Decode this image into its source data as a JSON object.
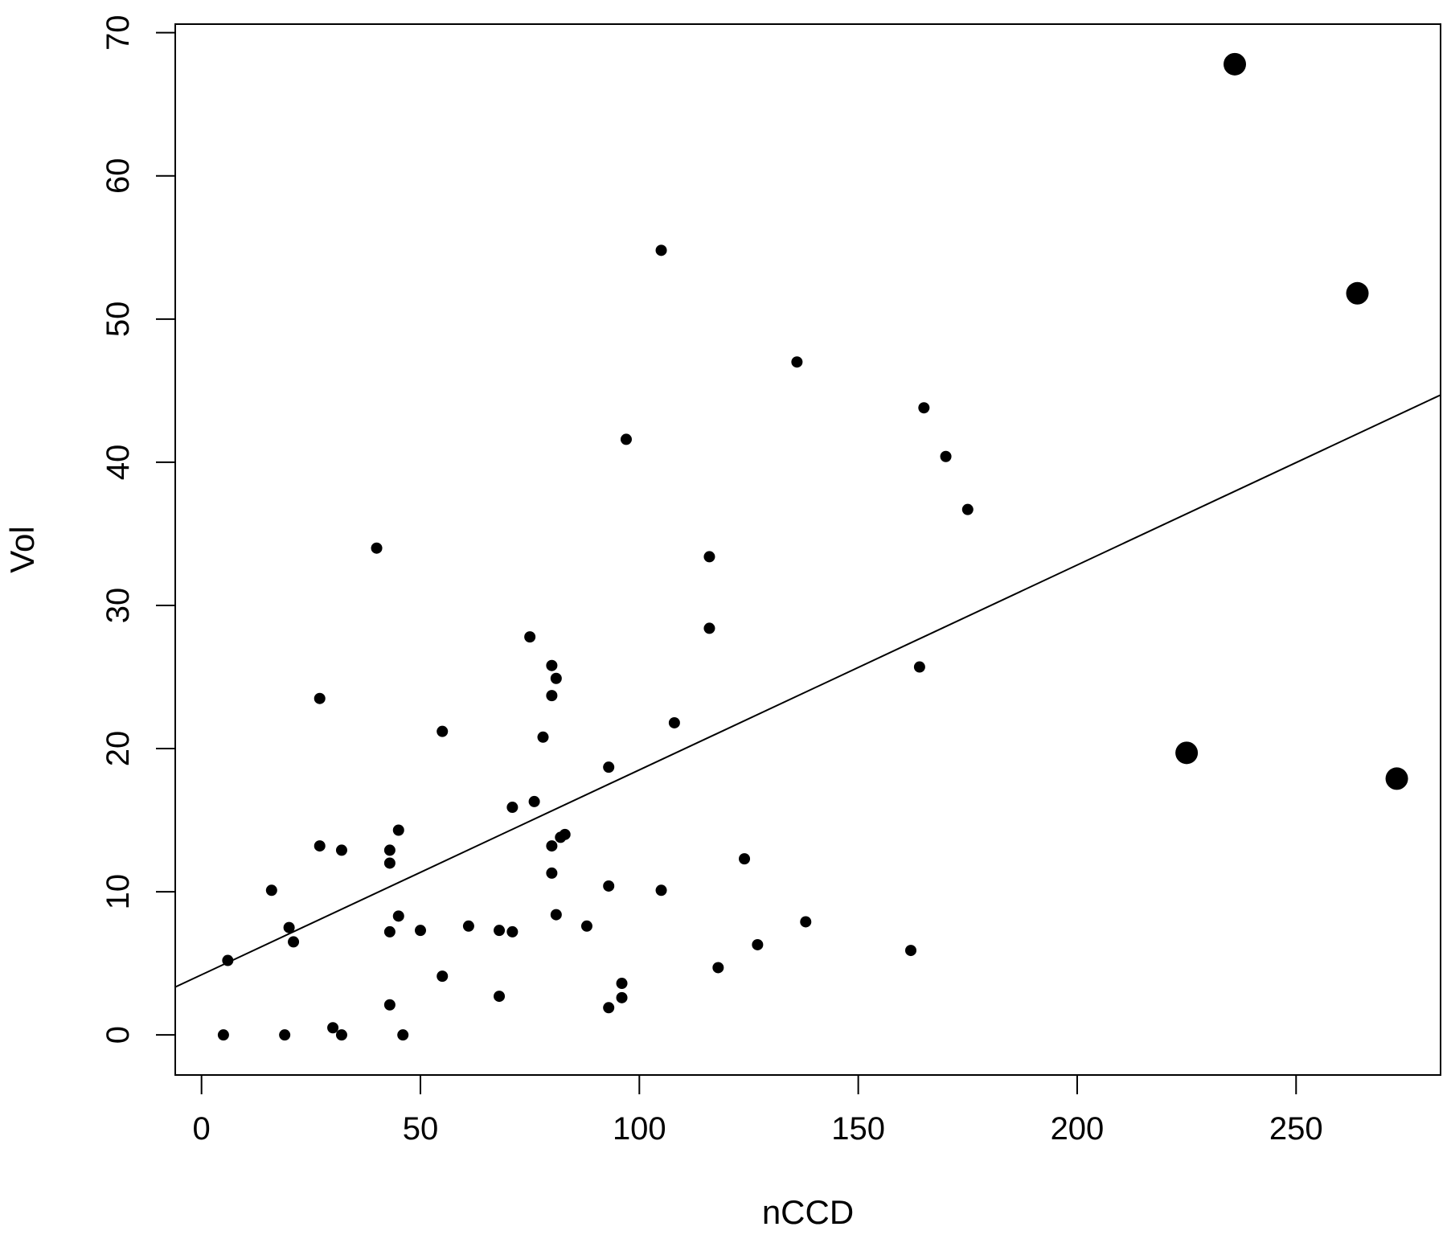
{
  "chart_data": {
    "type": "scatter",
    "title": "",
    "xlabel": "nCCD",
    "ylabel": "Vol",
    "xlim": [
      -6,
      283
    ],
    "ylim": [
      -2.8,
      70.6
    ],
    "x_ticks": [
      0,
      50,
      100,
      150,
      200,
      250
    ],
    "y_ticks": [
      0,
      10,
      20,
      30,
      40,
      50,
      60,
      70
    ],
    "grid": false,
    "legend": "none",
    "colors": {
      "points": "#000000",
      "line": "#000000",
      "background": "#ffffff"
    },
    "regression_line": {
      "intercept": 4.2,
      "slope": 0.1431
    },
    "points": [
      {
        "x": 5,
        "y": 0
      },
      {
        "x": 6,
        "y": 5.2
      },
      {
        "x": 16,
        "y": 10.1
      },
      {
        "x": 19,
        "y": 0
      },
      {
        "x": 20,
        "y": 7.5
      },
      {
        "x": 21,
        "y": 6.5
      },
      {
        "x": 27,
        "y": 23.5
      },
      {
        "x": 27,
        "y": 13.2
      },
      {
        "x": 30,
        "y": 0.5
      },
      {
        "x": 32,
        "y": 0
      },
      {
        "x": 32,
        "y": 12.9
      },
      {
        "x": 40,
        "y": 34
      },
      {
        "x": 43,
        "y": 12
      },
      {
        "x": 43,
        "y": 12.9
      },
      {
        "x": 43,
        "y": 2.1
      },
      {
        "x": 43,
        "y": 7.2
      },
      {
        "x": 45,
        "y": 14.3
      },
      {
        "x": 45,
        "y": 8.3
      },
      {
        "x": 46,
        "y": 0
      },
      {
        "x": 50,
        "y": 7.3
      },
      {
        "x": 55,
        "y": 4.1
      },
      {
        "x": 55,
        "y": 21.2
      },
      {
        "x": 61,
        "y": 7.6
      },
      {
        "x": 68,
        "y": 2.7
      },
      {
        "x": 68,
        "y": 7.3
      },
      {
        "x": 71,
        "y": 15.9
      },
      {
        "x": 71,
        "y": 7.2
      },
      {
        "x": 75,
        "y": 27.8
      },
      {
        "x": 76,
        "y": 16.3
      },
      {
        "x": 78,
        "y": 20.8
      },
      {
        "x": 80,
        "y": 25.8
      },
      {
        "x": 80,
        "y": 23.7
      },
      {
        "x": 80,
        "y": 11.3
      },
      {
        "x": 80,
        "y": 13.2
      },
      {
        "x": 81,
        "y": 24.9
      },
      {
        "x": 81,
        "y": 8.4
      },
      {
        "x": 82,
        "y": 13.8
      },
      {
        "x": 83,
        "y": 14
      },
      {
        "x": 88,
        "y": 7.6
      },
      {
        "x": 93,
        "y": 10.4
      },
      {
        "x": 93,
        "y": 1.9
      },
      {
        "x": 93,
        "y": 18.7
      },
      {
        "x": 96,
        "y": 3.6
      },
      {
        "x": 96,
        "y": 2.6
      },
      {
        "x": 97,
        "y": 41.6
      },
      {
        "x": 105,
        "y": 54.8
      },
      {
        "x": 105,
        "y": 10.1
      },
      {
        "x": 108,
        "y": 21.8
      },
      {
        "x": 116,
        "y": 33.4
      },
      {
        "x": 116,
        "y": 28.4
      },
      {
        "x": 118,
        "y": 4.7
      },
      {
        "x": 124,
        "y": 12.3
      },
      {
        "x": 127,
        "y": 6.3
      },
      {
        "x": 136,
        "y": 47
      },
      {
        "x": 138,
        "y": 7.9
      },
      {
        "x": 162,
        "y": 5.9
      },
      {
        "x": 164,
        "y": 25.7
      },
      {
        "x": 165,
        "y": 43.8
      },
      {
        "x": 170,
        "y": 40.4
      },
      {
        "x": 175,
        "y": 36.7
      },
      {
        "x": 225,
        "y": 19.7,
        "size": "large"
      },
      {
        "x": 236,
        "y": 67.8,
        "size": "large"
      },
      {
        "x": 264,
        "y": 51.8,
        "size": "large"
      },
      {
        "x": 273,
        "y": 17.9,
        "size": "large"
      }
    ]
  }
}
